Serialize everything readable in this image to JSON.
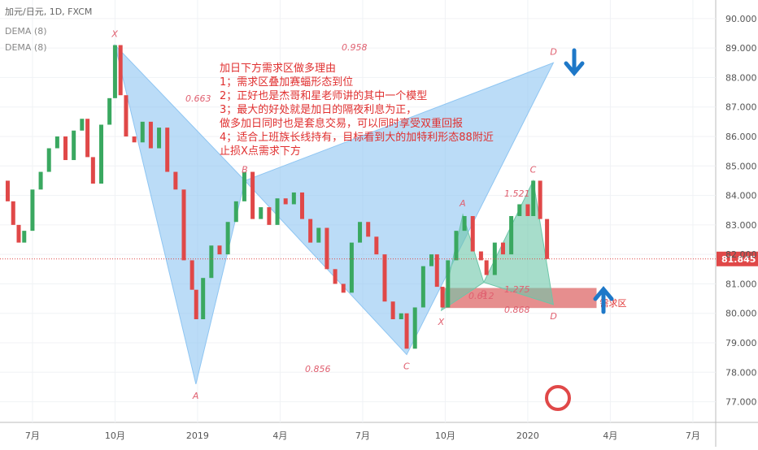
{
  "chart_data": {
    "type": "candlestick",
    "title": "加元/日元, 1D, FXCM",
    "indicators": [
      "DEMA (8)",
      "DEMA (8)"
    ],
    "x": [
      -1.1,
      -0.9,
      -0.7,
      -0.5,
      -0.3,
      0,
      0.3,
      0.6,
      0.9,
      1.2,
      1.5,
      1.8,
      2.0,
      2.2,
      2.5,
      2.8,
      3.0,
      3.2,
      3.4,
      3.7,
      4.0,
      4.3,
      4.6,
      4.9,
      5.2,
      5.5,
      5.8,
      5.95,
      6.2,
      6.5,
      6.8,
      7.1,
      7.4,
      7.7,
      8.0,
      8.3,
      8.6,
      8.9,
      9.2,
      9.5,
      9.8,
      10.1,
      10.4,
      10.7,
      11.0,
      11.3,
      11.6,
      11.9,
      12.2,
      12.5,
      12.8,
      13.1,
      13.4,
      13.6,
      13.9,
      14.2,
      14.5,
      14.7,
      14.9,
      15.1,
      15.4,
      15.7,
      16.0,
      16.3,
      16.5,
      16.8,
      17.1,
      17.4,
      17.7,
      18.0,
      18.2,
      18.45,
      18.7
    ],
    "close": [
      84.5,
      83.8,
      83.0,
      82.4,
      82.8,
      84.2,
      84.8,
      85.6,
      86.0,
      85.2,
      86.2,
      86.6,
      85.3,
      84.4,
      86.4,
      87.3,
      89.1,
      87.4,
      86.0,
      85.8,
      86.5,
      85.6,
      86.3,
      84.8,
      84.2,
      81.8,
      80.8,
      79.8,
      81.2,
      82.3,
      82.0,
      83.1,
      83.8,
      84.8,
      83.2,
      83.6,
      83.0,
      83.9,
      83.7,
      84.1,
      83.2,
      82.4,
      82.9,
      81.5,
      81.0,
      80.7,
      82.4,
      83.1,
      82.6,
      82.0,
      80.4,
      79.8,
      80.0,
      78.8,
      80.2,
      81.6,
      82.0,
      80.9,
      80.2,
      81.8,
      82.8,
      83.3,
      82.1,
      81.8,
      81.3,
      82.4,
      82.0,
      83.3,
      83.7,
      83.3,
      84.5,
      83.2,
      81.845
    ],
    "up_color": "#3aa860",
    "down_color": "#e04848",
    "last_price": 81.845,
    "xlim": [
      -1.18,
      24.83
    ],
    "ylim": [
      76.3,
      90.63
    ],
    "xticks": [
      {
        "value": 0,
        "label": "7月"
      },
      {
        "value": 3,
        "label": "10月"
      },
      {
        "value": 6,
        "label": "2019"
      },
      {
        "value": 9,
        "label": "4月"
      },
      {
        "value": 12,
        "label": "7月"
      },
      {
        "value": 15,
        "label": "10月"
      },
      {
        "value": 18,
        "label": "2020"
      },
      {
        "value": 21,
        "label": "4月"
      },
      {
        "value": 24,
        "label": "7月"
      }
    ],
    "yticks": [
      {
        "value": 77,
        "label": "77.000"
      },
      {
        "value": 78,
        "label": "78.000"
      },
      {
        "value": 79,
        "label": "79.000"
      },
      {
        "value": 80,
        "label": "80.000"
      },
      {
        "value": 81,
        "label": "81.000"
      },
      {
        "value": 82,
        "label": "82.000"
      },
      {
        "value": 83,
        "label": "83.000"
      },
      {
        "value": 84,
        "label": "84.000"
      },
      {
        "value": 85,
        "label": "85.000"
      },
      {
        "value": 86,
        "label": "86.000"
      },
      {
        "value": 87,
        "label": "87.000"
      },
      {
        "value": 88,
        "label": "88.000"
      },
      {
        "value": 89,
        "label": "89.000"
      },
      {
        "value": 90,
        "label": "90.000"
      }
    ],
    "grid": true,
    "patterns": [
      {
        "color": "#8ec5f2",
        "letters": [
          "X",
          "A",
          "B",
          "C",
          "D"
        ],
        "x": [
          3.0,
          5.94,
          7.72,
          13.6,
          18.93
        ],
        "y": [
          89.1,
          77.6,
          84.5,
          78.6,
          88.5
        ],
        "ratios": [
          "0.663",
          "0.958",
          "0.856"
        ]
      },
      {
        "color": "#6cc6a8",
        "letters": [
          "X",
          "A",
          "B",
          "C",
          "D"
        ],
        "x": [
          14.86,
          15.64,
          16.4,
          18.2,
          18.93
        ],
        "y": [
          80.1,
          83.35,
          81.05,
          84.5,
          80.3
        ],
        "ratios": [
          "1.521",
          "0.612",
          "1.275",
          "0.868"
        ]
      }
    ],
    "zone": {
      "label": "需求区",
      "color": "#e27a7a",
      "x": [
        14.86,
        20.5
      ],
      "y": [
        80.18,
        80.86
      ]
    },
    "note": [
      "加日下方需求区做多理由",
      "1；需求区叠加赛蝠形态到位",
      "2；正好也是杰哥和星老师讲的其中一个模型",
      "3；最大的好处就是加日的隔夜利息为正，",
      "做多加日同时也是套息交易，可以同时享受双重回报",
      "4；适合上班族长线持有，目标看到大的加特利形态88附近",
      "止损X点需求下方"
    ]
  }
}
